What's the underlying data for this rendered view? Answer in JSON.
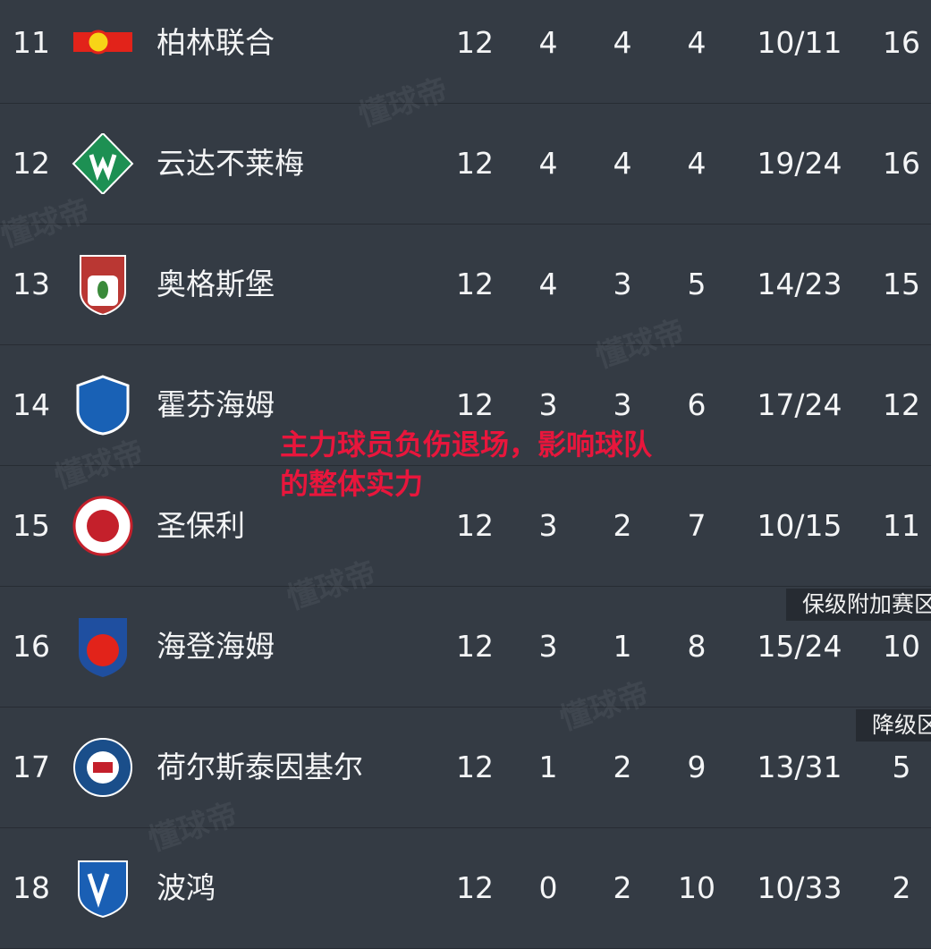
{
  "watermark": "懂球帝",
  "columns": [
    "rank",
    "team",
    "played",
    "won",
    "drawn",
    "lost",
    "goals",
    "points"
  ],
  "rows": [
    {
      "rank": "11",
      "team": "柏林联合",
      "played": "12",
      "won": "4",
      "drawn": "4",
      "lost": "4",
      "goals": "10/11",
      "points": "16",
      "logo": "union-berlin-logo"
    },
    {
      "rank": "12",
      "team": "云达不莱梅",
      "played": "12",
      "won": "4",
      "drawn": "4",
      "lost": "4",
      "goals": "19/24",
      "points": "16",
      "logo": "werder-bremen-logo"
    },
    {
      "rank": "13",
      "team": "奥格斯堡",
      "played": "12",
      "won": "4",
      "drawn": "3",
      "lost": "5",
      "goals": "14/23",
      "points": "15",
      "logo": "augsburg-logo"
    },
    {
      "rank": "14",
      "team": "霍芬海姆",
      "played": "12",
      "won": "3",
      "drawn": "3",
      "lost": "6",
      "goals": "17/24",
      "points": "12",
      "logo": "hoffenheim-logo"
    },
    {
      "rank": "15",
      "team": "圣保利",
      "played": "12",
      "won": "3",
      "drawn": "2",
      "lost": "7",
      "goals": "10/15",
      "points": "11",
      "logo": "st-pauli-logo"
    },
    {
      "rank": "16",
      "team": "海登海姆",
      "played": "12",
      "won": "3",
      "drawn": "1",
      "lost": "8",
      "goals": "15/24",
      "points": "10",
      "logo": "heidenheim-logo"
    },
    {
      "rank": "17",
      "team": "荷尔斯泰因基尔",
      "played": "12",
      "won": "1",
      "drawn": "2",
      "lost": "9",
      "goals": "13/31",
      "points": "5",
      "logo": "holstein-kiel-logo"
    },
    {
      "rank": "18",
      "team": "波鸿",
      "played": "12",
      "won": "0",
      "drawn": "2",
      "lost": "10",
      "goals": "10/33",
      "points": "2",
      "logo": "bochum-logo"
    }
  ],
  "zones": {
    "playoff": "保级附加赛区",
    "relegation": "降级区"
  },
  "overlay_text": "主力球员负伤退场，影响球队的整体实力",
  "colors": {
    "background": "#343b44",
    "overlay": "#e8163c",
    "zone_bg": "#262b32"
  }
}
